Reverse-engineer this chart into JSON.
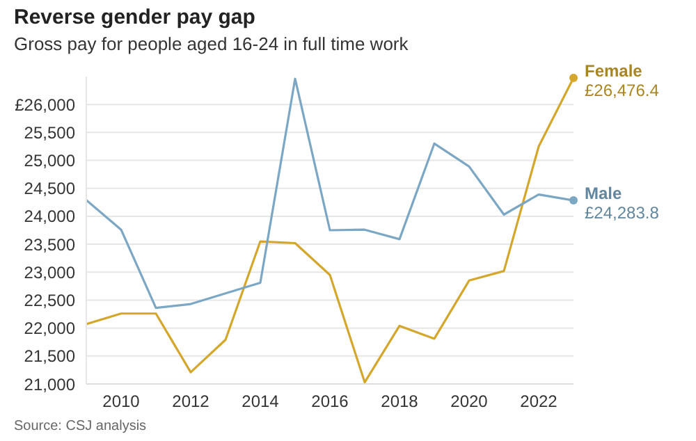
{
  "chart_data": {
    "type": "line",
    "title": "Reverse gender pay gap",
    "subtitle": "Gross pay for people aged 16-24 in full time work",
    "annotations": [
      "Source: CSJ analysis"
    ],
    "x": [
      2009,
      2010,
      2011,
      2012,
      2013,
      2014,
      2015,
      2016,
      2017,
      2018,
      2019,
      2020,
      2021,
      2022,
      2023
    ],
    "series": [
      {
        "name": "Female",
        "color": "#d4a72c",
        "values": [
          22070,
          22260,
          22260,
          21210,
          21790,
          23550,
          23520,
          22950,
          21030,
          22040,
          21810,
          22850,
          23020,
          25250,
          26476.4
        ],
        "value_labels": [
          null,
          null,
          null,
          null,
          null,
          null,
          null,
          null,
          null,
          null,
          null,
          null,
          null,
          null,
          "£26,476.4"
        ]
      },
      {
        "name": "Male",
        "color": "#7ba7c4",
        "values": [
          24290,
          23760,
          22360,
          22430,
          22620,
          22810,
          26460,
          23750,
          23760,
          23590,
          25300,
          24890,
          24030,
          24390,
          24283.8
        ],
        "value_labels": [
          null,
          null,
          null,
          null,
          null,
          null,
          null,
          null,
          null,
          null,
          null,
          null,
          null,
          null,
          "£24,283.8"
        ]
      }
    ],
    "xlim": [
      2009,
      2023
    ],
    "xticks": [
      2010,
      2012,
      2014,
      2016,
      2018,
      2020,
      2022
    ],
    "ylim": [
      21000,
      26500
    ],
    "yticks": [
      {
        "value": 21000,
        "label": "21,000"
      },
      {
        "value": 21500,
        "label": "21,500"
      },
      {
        "value": 22000,
        "label": "22,000"
      },
      {
        "value": 22500,
        "label": "22,500"
      },
      {
        "value": 23000,
        "label": "23,000"
      },
      {
        "value": 23500,
        "label": "23,500"
      },
      {
        "value": 24000,
        "label": "24,000"
      },
      {
        "value": 24500,
        "label": "24,500"
      },
      {
        "value": 25000,
        "label": "25,000"
      },
      {
        "value": 25500,
        "label": "25,500"
      },
      {
        "value": 26000,
        "label": "£26,000"
      }
    ],
    "grid": "y",
    "legend": false,
    "marker": "none",
    "line_style": "solid"
  }
}
